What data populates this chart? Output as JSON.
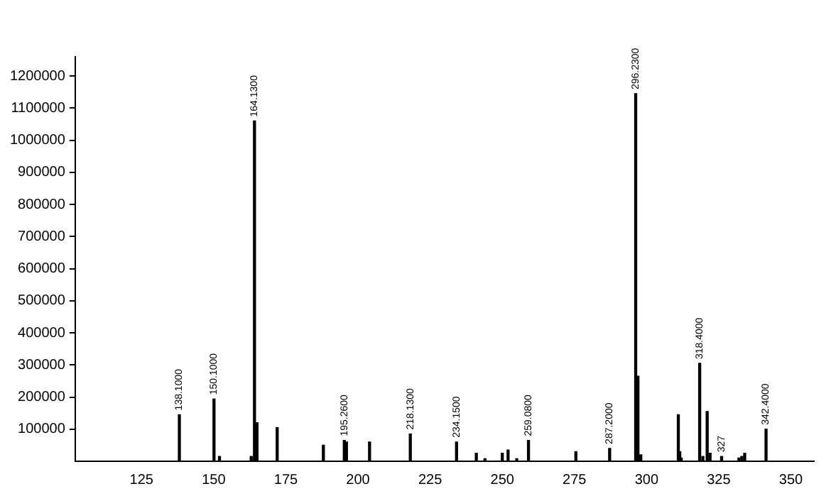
{
  "chart_data": {
    "type": "bar",
    "x": [
      138.1,
      150.1,
      152,
      163,
      164.13,
      165,
      172,
      188,
      195.26,
      196,
      204,
      218.13,
      234.15,
      241,
      244,
      250,
      252,
      255,
      259.08,
      275.5,
      287.2,
      296.23,
      297,
      298,
      311,
      311.5,
      312,
      318.4,
      319.5,
      321,
      322,
      326,
      332,
      333,
      334,
      341.4
    ],
    "values": [
      145000,
      194000,
      15000,
      15000,
      1060000,
      120000,
      105000,
      50000,
      65000,
      60000,
      60000,
      85000,
      60000,
      25000,
      8000,
      25000,
      35000,
      8000,
      65000,
      30000,
      40000,
      1145000,
      265000,
      20000,
      145000,
      30000,
      10000,
      305000,
      15000,
      155000,
      25000,
      15000,
      10000,
      15000,
      25000,
      100000
    ],
    "color": "#000000",
    "xlim": [
      102,
      358
    ],
    "xticks": [
      125,
      150,
      175,
      200,
      225,
      250,
      275,
      300,
      325,
      350
    ],
    "ylim": [
      0,
      1260000
    ],
    "yticks": [
      100000,
      200000,
      300000,
      400000,
      500000,
      600000,
      700000,
      800000,
      900000,
      1000000,
      1100000,
      1200000
    ],
    "grid": false,
    "legend": false,
    "annotations": [
      {
        "text": "138.1000",
        "x": 138.1,
        "y": 145000
      },
      {
        "text": "150.1000",
        "x": 150.1,
        "y": 194000
      },
      {
        "text": "164.1300",
        "x": 164.13,
        "y": 1060000
      },
      {
        "text": "195.2600",
        "x": 195.26,
        "y": 65000
      },
      {
        "text": "218.1300",
        "x": 218.13,
        "y": 85000
      },
      {
        "text": "234.1500",
        "x": 234.15,
        "y": 60000
      },
      {
        "text": "259.0800",
        "x": 259.08,
        "y": 65000
      },
      {
        "text": "287.2000",
        "x": 287.2,
        "y": 40000
      },
      {
        "text": "296.2300",
        "x": 296.23,
        "y": 1145000
      },
      {
        "text": "318.4000",
        "x": 318.4,
        "y": 305000
      },
      {
        "text": "327",
        "x": 326,
        "y": 15000
      },
      {
        "text": "342.4000",
        "x": 341.4,
        "y": 100000
      }
    ]
  }
}
